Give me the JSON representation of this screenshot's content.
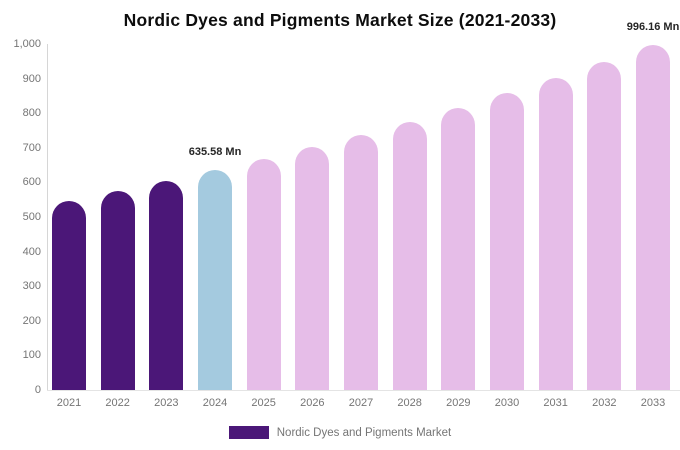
{
  "chart_data": {
    "type": "bar",
    "title": "Nordic Dyes and Pigments Market Size (2021-2033)",
    "categories": [
      "2021",
      "2022",
      "2023",
      "2024",
      "2025",
      "2026",
      "2027",
      "2028",
      "2029",
      "2030",
      "2031",
      "2032",
      "2033"
    ],
    "values": [
      547,
      575,
      605,
      635.58,
      668,
      702,
      738,
      776,
      816,
      857,
      901,
      947,
      996.16
    ],
    "bar_colors": [
      "#4B1778",
      "#4B1778",
      "#4B1778",
      "#A4CADF",
      "#E6BDE8",
      "#E6BDE8",
      "#E6BDE8",
      "#E6BDE8",
      "#E6BDE8",
      "#E6BDE8",
      "#E6BDE8",
      "#E6BDE8",
      "#E6BDE8"
    ],
    "color_roles": {
      "historical_2021_2023": "#4B1778",
      "base_year_2024": "#A4CADF",
      "forecast_2025_2033": "#E6BDE8"
    },
    "ylim": [
      0,
      1000
    ],
    "yticks": [
      {
        "value": 0,
        "label": "0"
      },
      {
        "value": 100,
        "label": "100"
      },
      {
        "value": 200,
        "label": "200"
      },
      {
        "value": 300,
        "label": "300"
      },
      {
        "value": 400,
        "label": "400"
      },
      {
        "value": 500,
        "label": "500"
      },
      {
        "value": 600,
        "label": "600"
      },
      {
        "value": 700,
        "label": "700"
      },
      {
        "value": 800,
        "label": "800"
      },
      {
        "value": 900,
        "label": "900"
      },
      {
        "value": 1000,
        "label": "1,000"
      }
    ],
    "grid": false,
    "annotations": [
      {
        "index": 3,
        "text": "635.58 Mn"
      },
      {
        "index": 12,
        "text": "996.16 Mn"
      }
    ],
    "legend": {
      "label": "Nordic Dyes and Pigments Market",
      "swatch_color": "#4B1778",
      "position": "bottom"
    },
    "axis_text_color": "#757575",
    "annotation_text_color": "#262626",
    "axis_line_color": "#D6D6D6"
  }
}
